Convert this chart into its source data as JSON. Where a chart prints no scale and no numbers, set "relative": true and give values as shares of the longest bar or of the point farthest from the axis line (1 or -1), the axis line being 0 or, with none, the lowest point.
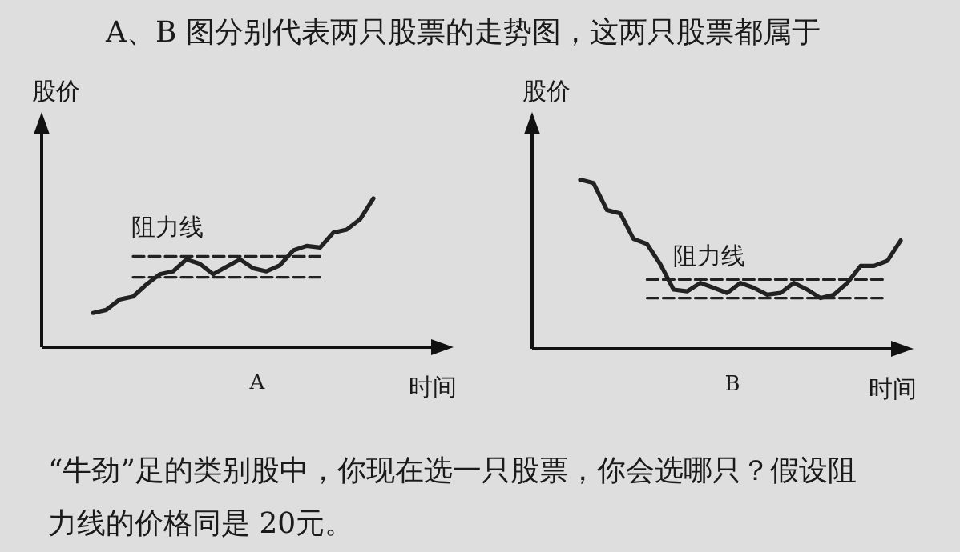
{
  "chart_data": [
    {
      "type": "line",
      "title": "A",
      "xlabel": "时间",
      "ylabel": "股价",
      "relative": true,
      "annotations": [
        "阻力线"
      ],
      "categories": [
        null,
        null,
        null,
        null,
        null,
        null,
        null,
        null,
        null,
        null,
        null,
        null,
        null,
        null,
        null,
        null,
        null,
        null,
        null,
        null,
        null,
        null
      ],
      "series": [
        {
          "color": "#222222",
          "values": [
            0.23,
            0.25,
            0.32,
            0.34,
            0.42,
            0.49,
            0.51,
            0.59,
            0.56,
            0.49,
            0.54,
            0.59,
            0.53,
            0.51,
            0.55,
            0.65,
            0.68,
            0.67,
            0.77,
            0.79,
            0.86,
            1
          ]
        },
        {
          "color": "#222222",
          "line_style": "dashed",
          "values": [
            null,
            null,
            null,
            0.61,
            0.61,
            0.61,
            0.61,
            0.61,
            0.61,
            0.61,
            0.61,
            0.61,
            0.61,
            0.61,
            0.61,
            0.61,
            0.61,
            0.61,
            null,
            null,
            null,
            null
          ]
        },
        {
          "color": "#222222",
          "line_style": "dashed",
          "values": [
            null,
            null,
            null,
            0.47,
            0.47,
            0.47,
            0.47,
            0.47,
            0.47,
            0.47,
            0.47,
            0.47,
            0.47,
            0.47,
            0.47,
            0.47,
            0.47,
            0.47,
            null,
            null,
            null,
            null
          ]
        }
      ]
    },
    {
      "type": "line",
      "title": "B",
      "xlabel": "时间",
      "ylabel": "股价",
      "relative": true,
      "annotations": [
        "阻力线"
      ],
      "categories": [
        null,
        null,
        null,
        null,
        null,
        null,
        null,
        null,
        null,
        null,
        null,
        null,
        null,
        null,
        null,
        null,
        null,
        null,
        null,
        null,
        null,
        null,
        null,
        null,
        null
      ],
      "series": [
        {
          "color": "#222222",
          "values": [
            1,
            0.98,
            0.82,
            0.8,
            0.65,
            0.62,
            0.5,
            0.35,
            0.34,
            0.39,
            0.36,
            0.33,
            0.39,
            0.36,
            0.32,
            0.33,
            0.39,
            0.35,
            0.3,
            0.32,
            0.39,
            0.49,
            0.49,
            0.52,
            0.64
          ]
        },
        {
          "color": "#222222",
          "line_style": "dashed",
          "values": [
            null,
            null,
            null,
            null,
            null,
            0.41,
            0.41,
            0.41,
            0.41,
            0.41,
            0.41,
            0.41,
            0.41,
            0.41,
            0.41,
            0.41,
            0.41,
            0.41,
            0.41,
            0.41,
            0.41,
            0.41,
            0.41,
            0.41,
            null
          ]
        },
        {
          "color": "#222222",
          "line_style": "dashed",
          "values": [
            null,
            null,
            null,
            null,
            null,
            0.3,
            0.3,
            0.3,
            0.3,
            0.3,
            0.3,
            0.3,
            0.3,
            0.3,
            0.3,
            0.3,
            0.3,
            0.3,
            0.3,
            0.3,
            0.3,
            0.3,
            0.3,
            0.3,
            null
          ]
        }
      ]
    },
    {
      "type": "other",
      "annotations": [
        "A、B 图分别代表两只股票的走势图，这两只股票都属于",
        "“牛劲”足的类别股中，你现在选一只股票，你会选哪只？假设阻",
        "力线的价格同是 20元。"
      ]
    }
  ]
}
